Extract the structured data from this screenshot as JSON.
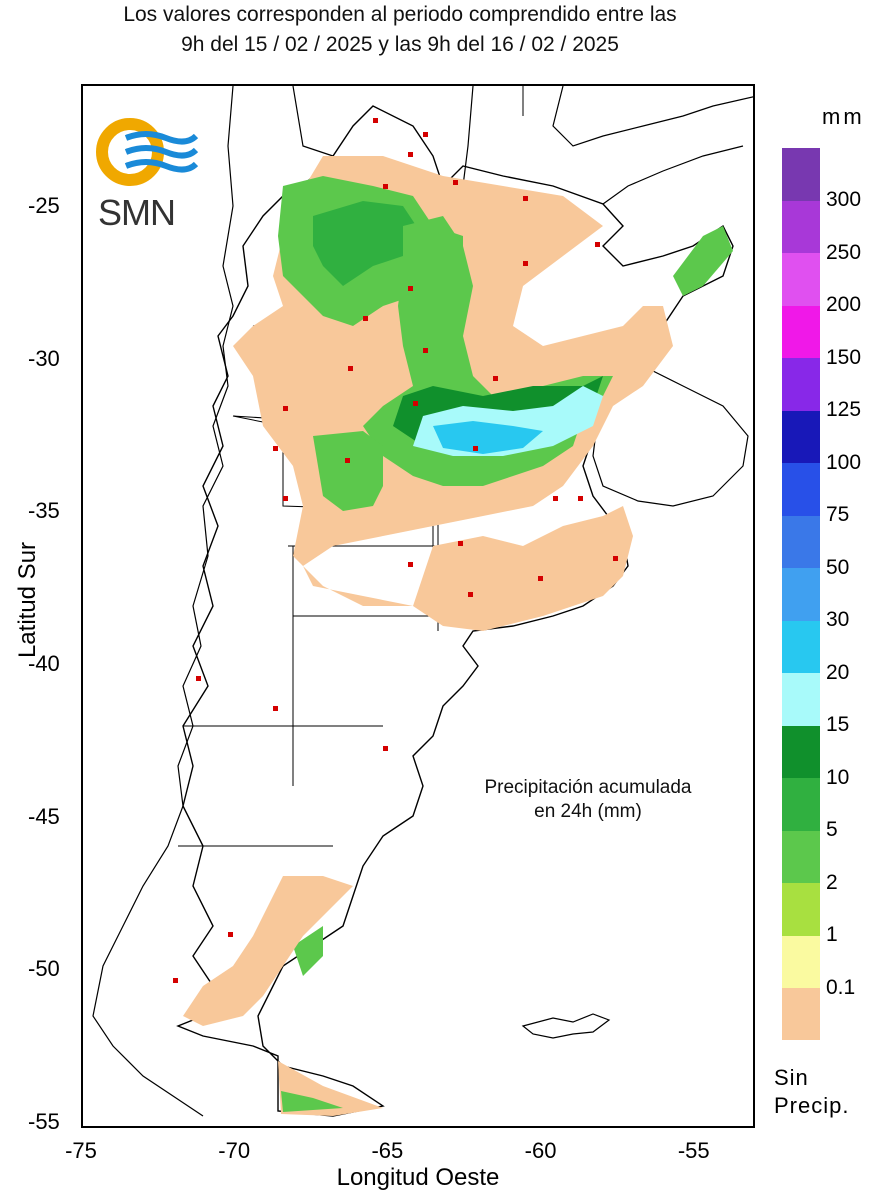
{
  "header": {
    "line1": "Los valores corresponden al periodo comprendido entre las",
    "line2": "9h del 15 / 02 / 2025  y las 9h del 16 / 02 / 2025"
  },
  "logo": {
    "text": "SMN",
    "icon": "smn-sun-waves-logo"
  },
  "annotation": {
    "line1": "Precipitación acumulada",
    "line2": "en 24h (mm)"
  },
  "axes": {
    "xlabel": "Longitud Oeste",
    "ylabel": "Latitud Sur",
    "xticks": [
      {
        "label": "-75",
        "value": -75
      },
      {
        "label": "-70",
        "value": -70
      },
      {
        "label": "-65",
        "value": -65
      },
      {
        "label": "-60",
        "value": -60
      },
      {
        "label": "-55",
        "value": -55
      }
    ],
    "yticks": [
      {
        "label": "-25",
        "value": -25
      },
      {
        "label": "-30",
        "value": -30
      },
      {
        "label": "-35",
        "value": -35
      },
      {
        "label": "-40",
        "value": -40
      },
      {
        "label": "-45",
        "value": -45
      },
      {
        "label": "-50",
        "value": -50
      },
      {
        "label": "-55",
        "value": -55
      }
    ],
    "xlim": [
      -75,
      -53
    ],
    "ylim": [
      -55.2,
      -21
    ]
  },
  "legend": {
    "unit": "mm",
    "no_precip_line1": "Sin",
    "no_precip_line2": "Precip.",
    "levels": [
      {
        "label": "0.1",
        "color": "#f8c89a"
      },
      {
        "label": "1",
        "color": "#fafaa0"
      },
      {
        "label": "2",
        "color": "#a8e040"
      },
      {
        "label": "5",
        "color": "#5cc84c"
      },
      {
        "label": "10",
        "color": "#30b040"
      },
      {
        "label": "15",
        "color": "#10902c"
      },
      {
        "label": "20",
        "color": "#a8fafa"
      },
      {
        "label": "30",
        "color": "#28c8f0"
      },
      {
        "label": "50",
        "color": "#40a0f0"
      },
      {
        "label": "75",
        "color": "#3a78e8"
      },
      {
        "label": "100",
        "color": "#2850e8"
      },
      {
        "label": "125",
        "color": "#1818b8"
      },
      {
        "label": "150",
        "color": "#8828e8"
      },
      {
        "label": "200",
        "color": "#f018e8"
      },
      {
        "label": "250",
        "color": "#e050f0"
      },
      {
        "label": "300",
        "color": "#a838d8"
      },
      {
        "label": "",
        "color": "#7838b0"
      }
    ]
  }
}
